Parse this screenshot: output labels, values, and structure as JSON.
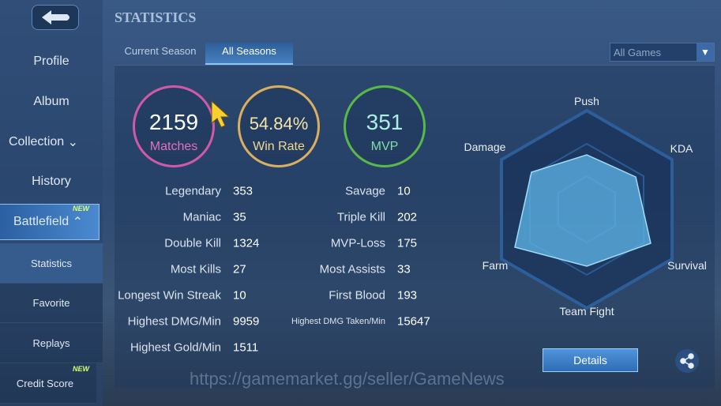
{
  "header": {
    "title": "STATISTICS"
  },
  "sidebar": [
    {
      "label": "Profile"
    },
    {
      "label": "Album"
    },
    {
      "label": "Collection"
    },
    {
      "label": "History"
    },
    {
      "label": "Battlefield",
      "badge": "NEW"
    },
    {
      "label": "Statistics"
    },
    {
      "label": "Favorite"
    },
    {
      "label": "Replays"
    },
    {
      "label": "Credit Score",
      "badge": "NEW"
    }
  ],
  "tabs": [
    "Current Season",
    "All Seasons"
  ],
  "filter": "All Games",
  "summary": [
    {
      "value": 2159,
      "label": "Matches"
    },
    {
      "value": "54.84%",
      "label": "Win Rate"
    },
    {
      "value": 351,
      "label": "MVP"
    }
  ],
  "stats": {
    "left": [
      {
        "label": "Legendary",
        "value": 353
      },
      {
        "label": "Maniac",
        "value": 35
      },
      {
        "label": "Double Kill",
        "value": 1324
      },
      {
        "label": "Most Kills",
        "value": 27
      },
      {
        "label": "Longest Win Streak",
        "value": 10
      },
      {
        "label": "Highest DMG/Min",
        "value": 9959
      },
      {
        "label": "Highest Gold/Min",
        "value": 1511
      }
    ],
    "right": [
      {
        "label": "Savage",
        "value": 10
      },
      {
        "label": "Triple Kill",
        "value": 202
      },
      {
        "label": "MVP-Loss",
        "value": 175
      },
      {
        "label": "Most Assists",
        "value": 33
      },
      {
        "label": "First Blood",
        "value": 193
      },
      {
        "label": "Highest DMG Taken/Min",
        "value": 15647
      }
    ]
  },
  "radar": {
    "labels": [
      "Push",
      "KDA",
      "Survival",
      "Team Fight",
      "Farm",
      "Damage"
    ]
  },
  "details_button": "Details",
  "watermark": "https://gamemarket.gg/seller/GameNews"
}
